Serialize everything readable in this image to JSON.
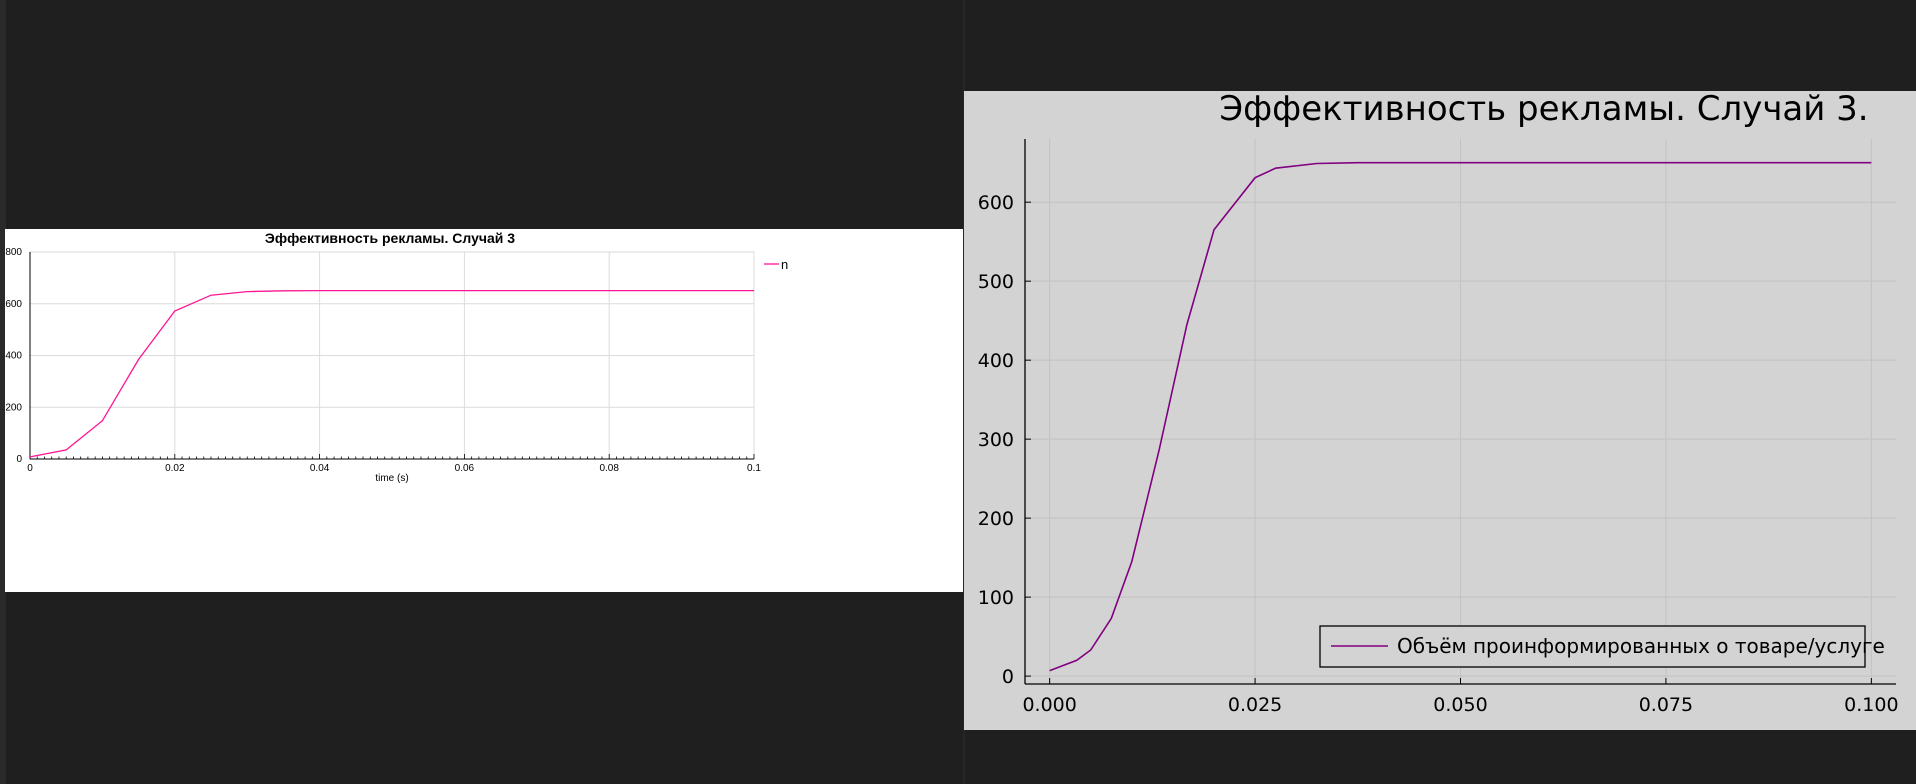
{
  "chart_data": [
    {
      "type": "line",
      "title": "Эффективность рекламы. Случай 3",
      "xlabel": "time (s)",
      "ylabel": "",
      "xlim": [
        0,
        0.1
      ],
      "ylim": [
        0,
        800
      ],
      "grid": true,
      "legend": "top-right",
      "x_ticks": [
        "0",
        "0.02",
        "0.04",
        "0.06",
        "0.08",
        "0.1"
      ],
      "y_ticks": [
        "0",
        "200",
        "400",
        "600",
        "800"
      ],
      "series": [
        {
          "name": "n",
          "color": "#ff1493",
          "x": [
            0,
            0.005,
            0.01,
            0.015,
            0.02,
            0.025,
            0.03,
            0.035,
            0.04,
            0.1
          ],
          "y": [
            8,
            35,
            148,
            385,
            572,
            633,
            647,
            650,
            651,
            651
          ]
        }
      ]
    },
    {
      "type": "line",
      "title": "Эффективность рекламы. Случай 3.",
      "xlabel": "",
      "ylabel": "",
      "xlim": [
        -0.003,
        0.103
      ],
      "ylim": [
        -10,
        680
      ],
      "grid": true,
      "legend": "bottom-right",
      "x_ticks": [
        "0.000",
        "0.025",
        "0.050",
        "0.075",
        "0.100"
      ],
      "y_ticks": [
        "0",
        "100",
        "200",
        "300",
        "400",
        "500",
        "600"
      ],
      "series": [
        {
          "name": "Объём проинформированных о товаре/услуге",
          "color": "#800080",
          "x": [
            0,
            0.0033,
            0.005,
            0.0075,
            0.01,
            0.0133,
            0.0167,
            0.02,
            0.025,
            0.0275,
            0.0325,
            0.0375,
            0.05,
            0.1
          ],
          "y": [
            7,
            20,
            33,
            73,
            145,
            285,
            445,
            565,
            631,
            643,
            649,
            650,
            650,
            650
          ]
        }
      ]
    }
  ]
}
